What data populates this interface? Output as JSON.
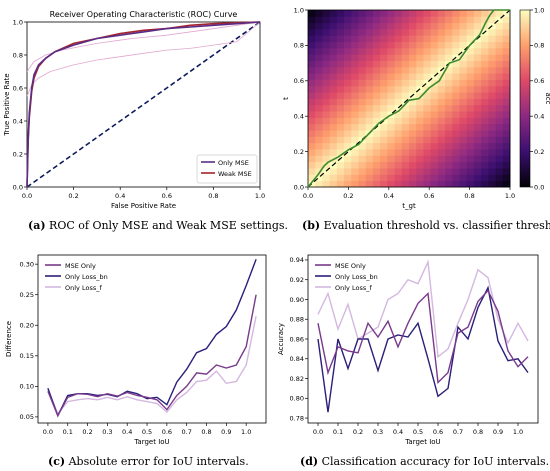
{
  "captions": {
    "a": {
      "tag": "(a)",
      "text": "ROC of Only MSE and Weak MSE settings."
    },
    "b": {
      "tag": "(b)",
      "text": "Evaluation threshold vs. classifier threshold."
    },
    "c": {
      "tag": "(c)",
      "text": "Absolute error for IoU intervals."
    },
    "d": {
      "tag": "(d)",
      "text": "Classification accuracy for IoU intervals."
    }
  },
  "chart_data": [
    {
      "id": "a",
      "type": "line",
      "title": "Receiver Operating Characteristic (ROC) Curve",
      "xlabel": "False Positive Rate",
      "ylabel": "True Positive Rate",
      "xlim": [
        0,
        1
      ],
      "ylim": [
        0,
        1
      ],
      "xticks": [
        "0.0",
        "0.2",
        "0.4",
        "0.6",
        "0.8",
        "1.0"
      ],
      "yticks": [
        "0.0",
        "0.2",
        "0.4",
        "0.6",
        "0.8",
        "1.0"
      ],
      "legend_position": "lower-right",
      "series": [
        {
          "name": "Only MSE",
          "color": "#5b2c86",
          "x": [
            0,
            0.005,
            0.01,
            0.02,
            0.03,
            0.05,
            0.08,
            0.12,
            0.2,
            0.3,
            0.4,
            0.5,
            0.6,
            0.7,
            0.8,
            0.9,
            1.0
          ],
          "y": [
            0,
            0.3,
            0.45,
            0.6,
            0.68,
            0.74,
            0.78,
            0.82,
            0.86,
            0.9,
            0.92,
            0.94,
            0.96,
            0.97,
            0.98,
            0.99,
            1.0
          ]
        },
        {
          "name": "Weak MSE",
          "color": "#a3232f",
          "x": [
            0,
            0.005,
            0.01,
            0.02,
            0.03,
            0.05,
            0.08,
            0.12,
            0.2,
            0.3,
            0.4,
            0.5,
            0.6,
            0.7,
            0.8,
            0.9,
            1.0
          ],
          "y": [
            0,
            0.28,
            0.42,
            0.58,
            0.66,
            0.73,
            0.78,
            0.82,
            0.87,
            0.9,
            0.93,
            0.95,
            0.96,
            0.98,
            0.99,
            0.995,
            1.0
          ]
        },
        {
          "name": "",
          "color": "#e2a6cf",
          "width": 0.8,
          "x": [
            0.0,
            0.02,
            0.05,
            0.1,
            0.2,
            0.3,
            0.4,
            0.5,
            0.6,
            0.7,
            0.8,
            0.9,
            1.0
          ],
          "y": [
            0.55,
            0.62,
            0.66,
            0.7,
            0.74,
            0.77,
            0.79,
            0.81,
            0.83,
            0.84,
            0.86,
            0.88,
            1.0
          ]
        },
        {
          "name": "",
          "color": "#e2a6cf",
          "width": 0.8,
          "x": [
            0.0,
            0.03,
            0.08,
            0.15,
            0.3,
            0.45,
            0.6,
            0.75,
            0.9,
            1.0
          ],
          "y": [
            0.7,
            0.76,
            0.8,
            0.83,
            0.87,
            0.9,
            0.92,
            0.95,
            0.98,
            1.0
          ]
        }
      ],
      "diagonal": {
        "color": "#0a1a5c",
        "style": "dashed"
      }
    },
    {
      "id": "b",
      "type": "heatmap",
      "xlabel": "t_gt",
      "ylabel": "t",
      "colorbar_label": "acc",
      "xlim": [
        0,
        1
      ],
      "ylim": [
        0,
        1
      ],
      "xticks": [
        "0.0",
        "0.2",
        "0.4",
        "0.6",
        "0.8",
        "1.0"
      ],
      "yticks": [
        "0.0",
        "0.2",
        "0.4",
        "0.6",
        "0.8",
        "1.0"
      ],
      "colorbar_ticks": [
        "0.0",
        "0.2",
        "0.4",
        "0.6",
        "0.8",
        "1.0"
      ],
      "colormap": "magma",
      "field": "acc = 1 - |t - t_gt|",
      "overlay_line": {
        "color": "#3e8a2e",
        "x": [
          0.0,
          0.05,
          0.08,
          0.1,
          0.15,
          0.2,
          0.25,
          0.3,
          0.35,
          0.4,
          0.45,
          0.5,
          0.55,
          0.6,
          0.65,
          0.7,
          0.75,
          0.8,
          0.85,
          0.88,
          0.9,
          0.92,
          0.95,
          1.0
        ],
        "y": [
          0.0,
          0.07,
          0.12,
          0.14,
          0.17,
          0.21,
          0.24,
          0.3,
          0.36,
          0.4,
          0.43,
          0.49,
          0.5,
          0.56,
          0.6,
          0.7,
          0.72,
          0.8,
          0.86,
          0.93,
          0.97,
          1.0,
          1.0,
          1.0
        ]
      },
      "diagonal": {
        "color": "#000000",
        "style": "dashed"
      }
    },
    {
      "id": "c",
      "type": "line",
      "xlabel": "Target IoU",
      "ylabel": "Difference",
      "xlim": [
        -0.05,
        1.1
      ],
      "ylim": [
        0.04,
        0.315
      ],
      "xticks": [
        "0.0",
        "0.1",
        "0.2",
        "0.3",
        "0.4",
        "0.5",
        "0.6",
        "0.7",
        "0.8",
        "0.9",
        "1.0"
      ],
      "yticks": [
        "0.05",
        "0.10",
        "0.15",
        "0.20",
        "0.25",
        "0.30"
      ],
      "legend_position": "upper-left",
      "x": [
        0.0,
        0.05,
        0.1,
        0.15,
        0.2,
        0.25,
        0.3,
        0.35,
        0.4,
        0.45,
        0.5,
        0.55,
        0.6,
        0.65,
        0.7,
        0.75,
        0.8,
        0.85,
        0.9,
        0.95,
        1.0,
        1.05
      ],
      "series": [
        {
          "name": "MSE Only",
          "color": "#7a3a8c",
          "values": [
            0.092,
            0.052,
            0.082,
            0.088,
            0.087,
            0.083,
            0.088,
            0.084,
            0.09,
            0.085,
            0.082,
            0.078,
            0.062,
            0.085,
            0.1,
            0.122,
            0.12,
            0.135,
            0.13,
            0.135,
            0.165,
            0.25
          ]
        },
        {
          "name": "Only Loss_bn",
          "color": "#2a1f7a",
          "values": [
            0.097,
            0.052,
            0.085,
            0.088,
            0.088,
            0.085,
            0.087,
            0.083,
            0.092,
            0.088,
            0.08,
            0.082,
            0.07,
            0.107,
            0.128,
            0.155,
            0.162,
            0.185,
            0.198,
            0.225,
            0.265,
            0.308
          ]
        },
        {
          "name": "Only Loss_f",
          "color": "#d4b8e0",
          "values": [
            0.095,
            0.055,
            0.075,
            0.078,
            0.08,
            0.078,
            0.082,
            0.078,
            0.083,
            0.078,
            0.075,
            0.072,
            0.058,
            0.078,
            0.09,
            0.108,
            0.11,
            0.125,
            0.105,
            0.108,
            0.135,
            0.215
          ]
        }
      ]
    },
    {
      "id": "d",
      "type": "line",
      "xlabel": "Target IoU",
      "ylabel": "Accuracy",
      "xlim": [
        -0.05,
        1.1
      ],
      "ylim": [
        0.775,
        0.945
      ],
      "xticks": [
        "0.0",
        "0.1",
        "0.2",
        "0.3",
        "0.4",
        "0.5",
        "0.6",
        "0.7",
        "0.8",
        "0.9",
        "1.0"
      ],
      "yticks": [
        "0.78",
        "0.80",
        "0.82",
        "0.84",
        "0.86",
        "0.88",
        "0.90",
        "0.92",
        "0.94"
      ],
      "legend_position": "upper-left",
      "x": [
        0.0,
        0.05,
        0.1,
        0.15,
        0.2,
        0.25,
        0.3,
        0.35,
        0.4,
        0.45,
        0.5,
        0.55,
        0.6,
        0.65,
        0.7,
        0.75,
        0.8,
        0.85,
        0.9,
        0.95,
        1.0,
        1.05
      ],
      "series": [
        {
          "name": "MSE Only",
          "color": "#7a3a8c",
          "values": [
            0.876,
            0.826,
            0.852,
            0.848,
            0.846,
            0.876,
            0.862,
            0.878,
            0.852,
            0.876,
            0.896,
            0.906,
            0.816,
            0.826,
            0.866,
            0.872,
            0.898,
            0.909,
            0.888,
            0.848,
            0.832,
            0.842
          ]
        },
        {
          "name": "Only Loss_bn",
          "color": "#2a1f7a",
          "values": [
            0.86,
            0.786,
            0.86,
            0.83,
            0.86,
            0.86,
            0.828,
            0.86,
            0.864,
            0.862,
            0.876,
            0.84,
            0.802,
            0.81,
            0.872,
            0.86,
            0.892,
            0.912,
            0.858,
            0.838,
            0.84,
            0.826
          ]
        },
        {
          "name": "Only Loss_f",
          "color": "#d4b8e0",
          "values": [
            0.885,
            0.906,
            0.87,
            0.895,
            0.86,
            0.866,
            0.872,
            0.9,
            0.906,
            0.92,
            0.916,
            0.938,
            0.842,
            0.85,
            0.876,
            0.9,
            0.93,
            0.922,
            0.88,
            0.856,
            0.876,
            0.858
          ]
        }
      ]
    }
  ]
}
